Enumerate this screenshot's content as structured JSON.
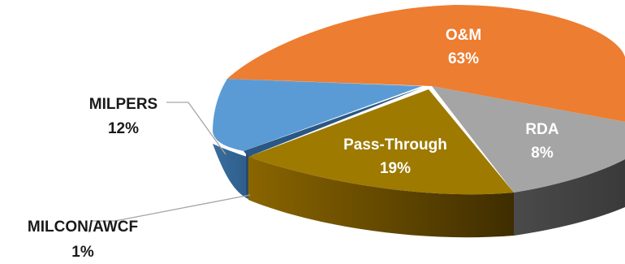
{
  "chart_data": {
    "type": "pie",
    "title": "",
    "categories": [
      "O&M",
      "RDA",
      "Pass-Through",
      "MILCON/AWCF",
      "MILPERS"
    ],
    "values": [
      63,
      8,
      19,
      1,
      12
    ],
    "units": "%",
    "labels": [
      {
        "name": "O&M",
        "value": "63%"
      },
      {
        "name": "RDA",
        "value": "8%"
      },
      {
        "name": "Pass-Through",
        "value": "19%"
      },
      {
        "name": "MILCON/AWCF",
        "value": "1%"
      },
      {
        "name": "MILPERS",
        "value": "12%"
      }
    ],
    "colors": [
      "#ED7D31",
      "#A5A5A5",
      "#9E7A00",
      "#4A86C0",
      "#5B9BD5"
    ],
    "style": "3d-exploded-pie",
    "legend": "none"
  }
}
